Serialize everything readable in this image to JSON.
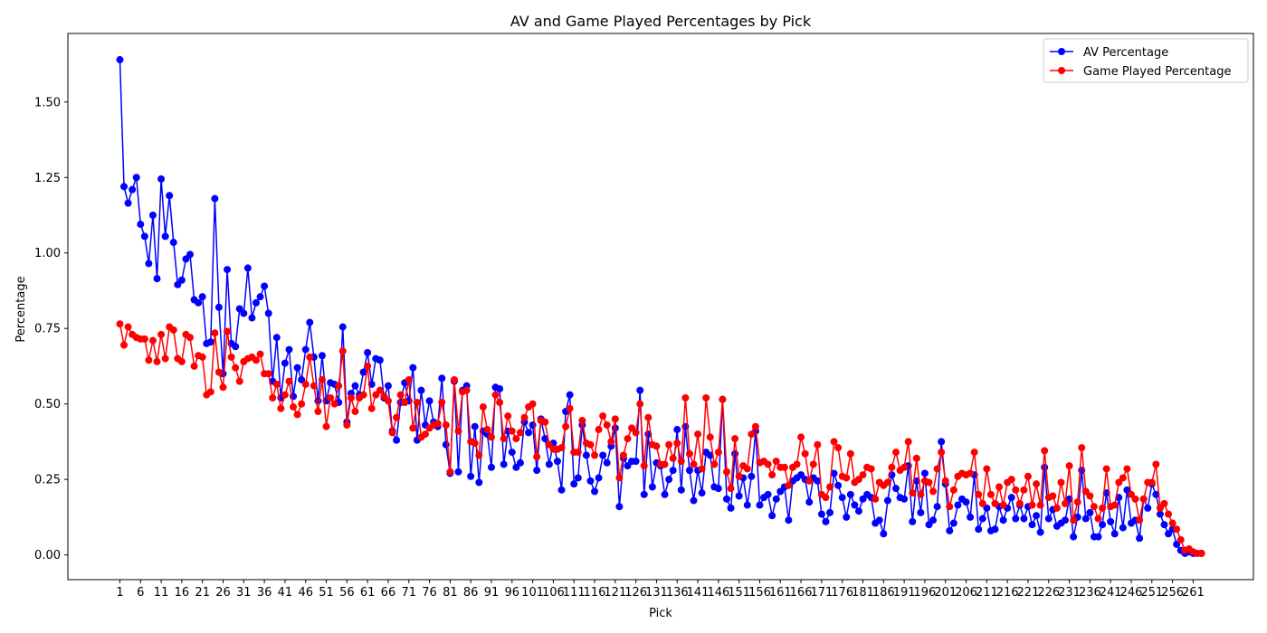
{
  "chart_data": {
    "type": "line",
    "title": "AV and Game Played Percentages by Pick",
    "xlabel": "Pick",
    "ylabel": "Percentage",
    "xlim": [
      -11.6,
      275.6
    ],
    "ylim": [
      -0.082,
      1.727
    ],
    "x_ticks": [
      1,
      6,
      11,
      16,
      21,
      26,
      31,
      36,
      41,
      46,
      51,
      56,
      61,
      66,
      71,
      76,
      81,
      86,
      91,
      96,
      101,
      106,
      111,
      116,
      121,
      126,
      131,
      136,
      141,
      146,
      151,
      156,
      161,
      166,
      171,
      176,
      181,
      186,
      191,
      196,
      201,
      206,
      211,
      216,
      221,
      226,
      231,
      236,
      241,
      246,
      251,
      256,
      261
    ],
    "x_tick_labels": [
      "1",
      "6",
      "11",
      "16",
      "21",
      "26",
      "31",
      "36",
      "41",
      "46",
      "51",
      "56",
      "61",
      "66",
      "71",
      "76",
      "81",
      "86",
      "91",
      "96",
      "101",
      "106",
      "111",
      "116",
      "121",
      "126",
      "131",
      "136",
      "141",
      "146",
      "151",
      "156",
      "161",
      "166",
      "171",
      "176",
      "181",
      "186",
      "191",
      "196",
      "201",
      "206",
      "211",
      "216",
      "221",
      "226",
      "231",
      "236",
      "241",
      "246",
      "251",
      "256",
      "261"
    ],
    "y_ticks": [
      0.0,
      0.25,
      0.5,
      0.75,
      1.0,
      1.25,
      1.5
    ],
    "y_tick_labels": [
      "0.00",
      "0.25",
      "0.50",
      "0.75",
      "1.00",
      "1.25",
      "1.50"
    ],
    "grid": false,
    "legend_position": "top-right",
    "series": [
      {
        "name": "AV Percentage",
        "color": "#0000ff",
        "x_start": 1,
        "values": [
          1.64,
          1.22,
          1.165,
          1.21,
          1.25,
          1.095,
          1.055,
          0.965,
          1.125,
          0.915,
          1.245,
          1.055,
          1.19,
          1.035,
          0.895,
          0.91,
          0.98,
          0.995,
          0.845,
          0.835,
          0.855,
          0.7,
          0.705,
          1.18,
          0.82,
          0.6,
          0.945,
          0.7,
          0.69,
          0.815,
          0.8,
          0.95,
          0.785,
          0.835,
          0.855,
          0.89,
          0.8,
          0.575,
          0.72,
          0.52,
          0.635,
          0.68,
          0.525,
          0.62,
          0.58,
          0.68,
          0.77,
          0.655,
          0.51,
          0.66,
          0.51,
          0.57,
          0.565,
          0.505,
          0.755,
          0.44,
          0.535,
          0.56,
          0.53,
          0.605,
          0.67,
          0.565,
          0.65,
          0.645,
          0.52,
          0.56,
          0.41,
          0.38,
          0.505,
          0.57,
          0.51,
          0.62,
          0.38,
          0.545,
          0.43,
          0.51,
          0.44,
          0.425,
          0.585,
          0.365,
          0.27,
          0.575,
          0.275,
          0.545,
          0.56,
          0.26,
          0.425,
          0.24,
          0.41,
          0.4,
          0.29,
          0.555,
          0.55,
          0.3,
          0.41,
          0.34,
          0.29,
          0.305,
          0.44,
          0.405,
          0.43,
          0.28,
          0.45,
          0.385,
          0.3,
          0.37,
          0.31,
          0.215,
          0.475,
          0.53,
          0.235,
          0.255,
          0.43,
          0.33,
          0.245,
          0.21,
          0.255,
          0.33,
          0.305,
          0.36,
          0.42,
          0.16,
          0.32,
          0.295,
          0.31,
          0.31,
          0.545,
          0.2,
          0.4,
          0.225,
          0.305,
          0.295,
          0.2,
          0.25,
          0.28,
          0.415,
          0.215,
          0.425,
          0.28,
          0.18,
          0.28,
          0.205,
          0.34,
          0.33,
          0.225,
          0.22,
          0.515,
          0.185,
          0.155,
          0.335,
          0.195,
          0.255,
          0.165,
          0.26,
          0.41,
          0.165,
          0.19,
          0.2,
          0.13,
          0.185,
          0.21,
          0.225,
          0.115,
          0.245,
          0.255,
          0.265,
          0.25,
          0.175,
          0.255,
          0.245,
          0.135,
          0.11,
          0.14,
          0.27,
          0.23,
          0.19,
          0.125,
          0.2,
          0.165,
          0.145,
          0.185,
          0.2,
          0.19,
          0.105,
          0.115,
          0.07,
          0.18,
          0.265,
          0.22,
          0.19,
          0.185,
          0.295,
          0.11,
          0.245,
          0.14,
          0.27,
          0.1,
          0.115,
          0.16,
          0.375,
          0.235,
          0.08,
          0.105,
          0.165,
          0.185,
          0.175,
          0.125,
          0.265,
          0.085,
          0.12,
          0.155,
          0.08,
          0.085,
          0.16,
          0.115,
          0.155,
          0.19,
          0.12,
          0.165,
          0.12,
          0.16,
          0.1,
          0.13,
          0.075,
          0.29,
          0.12,
          0.15,
          0.095,
          0.105,
          0.115,
          0.185,
          0.06,
          0.125,
          0.28,
          0.12,
          0.14,
          0.06,
          0.06,
          0.1,
          0.205,
          0.11,
          0.07,
          0.19,
          0.09,
          0.215,
          0.105,
          0.115,
          0.055,
          0.185,
          0.155,
          0.235,
          0.2,
          0.135,
          0.1,
          0.07,
          0.085,
          0.035,
          0.015,
          0.005,
          0.01,
          0.005,
          0.005,
          0.005
        ]
      },
      {
        "name": "Game Played Percentage",
        "color": "#ff0000",
        "x_start": 1,
        "values": [
          0.765,
          0.695,
          0.755,
          0.73,
          0.72,
          0.715,
          0.715,
          0.645,
          0.71,
          0.64,
          0.73,
          0.65,
          0.755,
          0.745,
          0.65,
          0.64,
          0.73,
          0.72,
          0.625,
          0.66,
          0.655,
          0.53,
          0.54,
          0.735,
          0.605,
          0.555,
          0.74,
          0.655,
          0.62,
          0.575,
          0.64,
          0.65,
          0.655,
          0.645,
          0.665,
          0.6,
          0.6,
          0.52,
          0.565,
          0.485,
          0.53,
          0.575,
          0.49,
          0.465,
          0.5,
          0.565,
          0.655,
          0.56,
          0.475,
          0.58,
          0.425,
          0.52,
          0.5,
          0.56,
          0.675,
          0.43,
          0.52,
          0.475,
          0.52,
          0.53,
          0.625,
          0.485,
          0.53,
          0.545,
          0.525,
          0.51,
          0.405,
          0.455,
          0.53,
          0.505,
          0.58,
          0.42,
          0.505,
          0.39,
          0.4,
          0.42,
          0.43,
          0.435,
          0.505,
          0.43,
          0.275,
          0.58,
          0.41,
          0.54,
          0.545,
          0.375,
          0.37,
          0.33,
          0.49,
          0.415,
          0.39,
          0.53,
          0.505,
          0.385,
          0.46,
          0.41,
          0.385,
          0.405,
          0.455,
          0.49,
          0.5,
          0.325,
          0.445,
          0.44,
          0.365,
          0.35,
          0.35,
          0.355,
          0.425,
          0.485,
          0.34,
          0.34,
          0.445,
          0.37,
          0.365,
          0.33,
          0.415,
          0.46,
          0.43,
          0.375,
          0.45,
          0.255,
          0.33,
          0.385,
          0.42,
          0.405,
          0.5,
          0.295,
          0.455,
          0.365,
          0.36,
          0.3,
          0.3,
          0.365,
          0.32,
          0.37,
          0.31,
          0.52,
          0.335,
          0.3,
          0.4,
          0.285,
          0.52,
          0.39,
          0.3,
          0.34,
          0.515,
          0.275,
          0.22,
          0.385,
          0.26,
          0.295,
          0.285,
          0.4,
          0.425,
          0.305,
          0.31,
          0.3,
          0.265,
          0.31,
          0.29,
          0.29,
          0.23,
          0.29,
          0.3,
          0.39,
          0.335,
          0.245,
          0.3,
          0.365,
          0.2,
          0.19,
          0.225,
          0.375,
          0.355,
          0.26,
          0.255,
          0.335,
          0.24,
          0.25,
          0.265,
          0.29,
          0.285,
          0.185,
          0.24,
          0.23,
          0.24,
          0.29,
          0.34,
          0.28,
          0.29,
          0.375,
          0.205,
          0.32,
          0.2,
          0.245,
          0.24,
          0.21,
          0.285,
          0.34,
          0.245,
          0.16,
          0.215,
          0.26,
          0.27,
          0.265,
          0.27,
          0.34,
          0.2,
          0.17,
          0.285,
          0.2,
          0.17,
          0.225,
          0.165,
          0.24,
          0.25,
          0.215,
          0.17,
          0.215,
          0.26,
          0.165,
          0.235,
          0.165,
          0.345,
          0.19,
          0.195,
          0.155,
          0.24,
          0.17,
          0.295,
          0.115,
          0.175,
          0.355,
          0.21,
          0.195,
          0.16,
          0.12,
          0.155,
          0.285,
          0.16,
          0.165,
          0.24,
          0.255,
          0.285,
          0.2,
          0.185,
          0.115,
          0.185,
          0.24,
          0.24,
          0.3,
          0.155,
          0.17,
          0.135,
          0.105,
          0.085,
          0.05,
          0.015,
          0.02,
          0.01,
          0.005,
          0.005
        ]
      }
    ]
  }
}
